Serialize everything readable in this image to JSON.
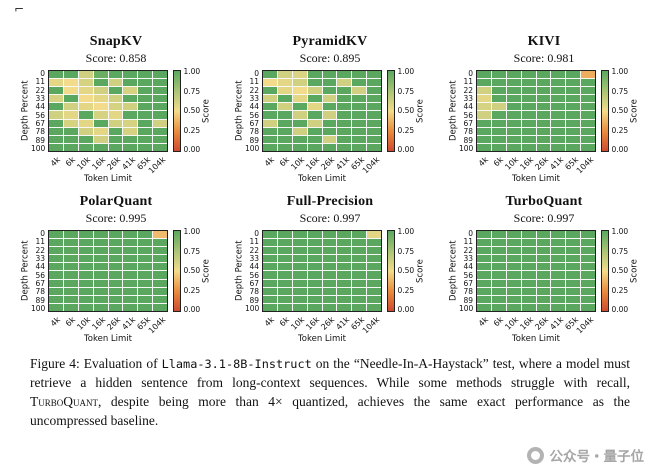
{
  "page": {
    "corner_mark": "⌐",
    "background": "#ffffff"
  },
  "axes": {
    "x_label": "Token Limit",
    "y_label": "Depth Percent",
    "x_ticks": [
      "4k",
      "6k",
      "10k",
      "16k",
      "26k",
      "41k",
      "65k",
      "104k"
    ],
    "y_ticks": [
      "0",
      "11",
      "22",
      "33",
      "44",
      "56",
      "67",
      "78",
      "89",
      "100"
    ],
    "colorbar_label": "Score",
    "colorbar_ticks": [
      "1.00",
      "0.75",
      "0.50",
      "0.25",
      "0.00"
    ]
  },
  "colormap": {
    "stops": [
      {
        "t": 0.0,
        "color": "#cf4a2f"
      },
      {
        "t": 0.25,
        "color": "#e98d3e"
      },
      {
        "t": 0.5,
        "color": "#f2dc8b"
      },
      {
        "t": 0.75,
        "color": "#a9c474"
      },
      {
        "t": 1.0,
        "color": "#5aa85f"
      }
    ]
  },
  "chart_data": [
    {
      "type": "heatmap",
      "title": "SnapKV",
      "score": 0.858,
      "score_label": "Score: 0.858",
      "x": [
        "4k",
        "6k",
        "10k",
        "16k",
        "26k",
        "41k",
        "65k",
        "104k"
      ],
      "y": [
        0,
        11,
        22,
        33,
        44,
        56,
        67,
        78,
        89,
        100
      ],
      "value_range": [
        0,
        1
      ],
      "values": [
        [
          1,
          1,
          0.62,
          0.95,
          1,
          1,
          1,
          1
        ],
        [
          0.55,
          0.5,
          0.6,
          1,
          0.62,
          1,
          1,
          1
        ],
        [
          1,
          0.5,
          0.55,
          0.62,
          1,
          0.6,
          1,
          1
        ],
        [
          0.6,
          1,
          0.5,
          0.55,
          0.62,
          1,
          1,
          1
        ],
        [
          1,
          0.62,
          0.55,
          0.5,
          0.6,
          0.62,
          1,
          1
        ],
        [
          0.62,
          0.55,
          1,
          0.6,
          0.55,
          1,
          1,
          1
        ],
        [
          1,
          0.6,
          0.55,
          1,
          0.62,
          0.6,
          1,
          0.62
        ],
        [
          1,
          1,
          0.62,
          0.55,
          1,
          0.6,
          1,
          1
        ],
        [
          1,
          1,
          1,
          0.62,
          1,
          1,
          1,
          1
        ],
        [
          1,
          1,
          1,
          1,
          1,
          1,
          1,
          1
        ]
      ]
    },
    {
      "type": "heatmap",
      "title": "PyramidKV",
      "score": 0.895,
      "score_label": "Score: 0.895",
      "x": [
        "4k",
        "6k",
        "10k",
        "16k",
        "26k",
        "41k",
        "65k",
        "104k"
      ],
      "y": [
        0,
        11,
        22,
        33,
        44,
        56,
        67,
        78,
        89,
        100
      ],
      "value_range": [
        0,
        1
      ],
      "values": [
        [
          1,
          0.62,
          0.58,
          1,
          1,
          1,
          1,
          1
        ],
        [
          0.5,
          0.55,
          0.62,
          1,
          1,
          0.62,
          1,
          1
        ],
        [
          1,
          0.55,
          0.5,
          0.62,
          1,
          1,
          0.62,
          1
        ],
        [
          0.62,
          1,
          0.55,
          1,
          0.62,
          1,
          1,
          1
        ],
        [
          1,
          0.62,
          1,
          0.55,
          1,
          1,
          1,
          1
        ],
        [
          1,
          1,
          0.62,
          1,
          0.62,
          1,
          1,
          1
        ],
        [
          0.62,
          1,
          1,
          0.62,
          1,
          1,
          1,
          1
        ],
        [
          1,
          1,
          0.62,
          1,
          1,
          1,
          1,
          1
        ],
        [
          1,
          1,
          1,
          1,
          0.62,
          1,
          1,
          1
        ],
        [
          1,
          1,
          1,
          1,
          1,
          1,
          1,
          1
        ]
      ]
    },
    {
      "type": "heatmap",
      "title": "KIVI",
      "score": 0.981,
      "score_label": "Score: 0.981",
      "x": [
        "4k",
        "6k",
        "10k",
        "16k",
        "26k",
        "41k",
        "65k",
        "104k"
      ],
      "y": [
        0,
        11,
        22,
        33,
        44,
        56,
        67,
        78,
        89,
        100
      ],
      "value_range": [
        0,
        1
      ],
      "values": [
        [
          1,
          1,
          1,
          1,
          1,
          1,
          1,
          0.35
        ],
        [
          1,
          1,
          1,
          1,
          1,
          1,
          1,
          1
        ],
        [
          0.62,
          1,
          1,
          1,
          1,
          1,
          1,
          1
        ],
        [
          0.55,
          1,
          1,
          1,
          1,
          1,
          1,
          1
        ],
        [
          0.6,
          0.62,
          1,
          1,
          1,
          1,
          1,
          1
        ],
        [
          0.62,
          1,
          1,
          1,
          1,
          1,
          1,
          1
        ],
        [
          1,
          1,
          1,
          1,
          1,
          1,
          1,
          1
        ],
        [
          1,
          1,
          1,
          1,
          1,
          1,
          1,
          1
        ],
        [
          1,
          1,
          1,
          1,
          1,
          1,
          1,
          1
        ],
        [
          1,
          1,
          1,
          1,
          1,
          1,
          1,
          1
        ]
      ]
    },
    {
      "type": "heatmap",
      "title": "PolarQuant",
      "score": 0.995,
      "score_label": "Score: 0.995",
      "x": [
        "4k",
        "6k",
        "10k",
        "16k",
        "26k",
        "41k",
        "65k",
        "104k"
      ],
      "y": [
        0,
        11,
        22,
        33,
        44,
        56,
        67,
        78,
        89,
        100
      ],
      "value_range": [
        0,
        1
      ],
      "values": [
        [
          1,
          1,
          1,
          1,
          1,
          1,
          1,
          0.4
        ],
        [
          1,
          1,
          1,
          1,
          1,
          1,
          1,
          1
        ],
        [
          1,
          1,
          1,
          1,
          1,
          1,
          1,
          1
        ],
        [
          1,
          1,
          1,
          1,
          1,
          1,
          1,
          1
        ],
        [
          1,
          1,
          1,
          1,
          1,
          1,
          1,
          1
        ],
        [
          1,
          1,
          1,
          1,
          1,
          1,
          1,
          1
        ],
        [
          1,
          1,
          1,
          1,
          1,
          1,
          1,
          1
        ],
        [
          1,
          1,
          1,
          1,
          1,
          1,
          1,
          1
        ],
        [
          1,
          1,
          1,
          1,
          1,
          1,
          1,
          1
        ],
        [
          1,
          1,
          1,
          1,
          1,
          1,
          1,
          1
        ]
      ]
    },
    {
      "type": "heatmap",
      "title": "Full-Precision",
      "score": 0.997,
      "score_label": "Score: 0.997",
      "x": [
        "4k",
        "6k",
        "10k",
        "16k",
        "26k",
        "41k",
        "65k",
        "104k"
      ],
      "y": [
        0,
        11,
        22,
        33,
        44,
        56,
        67,
        78,
        89,
        100
      ],
      "value_range": [
        0,
        1
      ],
      "values": [
        [
          1,
          1,
          1,
          1,
          1,
          1,
          1,
          0.55
        ],
        [
          1,
          1,
          1,
          1,
          1,
          1,
          1,
          1
        ],
        [
          1,
          1,
          1,
          1,
          1,
          1,
          1,
          1
        ],
        [
          1,
          1,
          1,
          1,
          1,
          1,
          1,
          1
        ],
        [
          1,
          1,
          1,
          1,
          1,
          1,
          1,
          1
        ],
        [
          1,
          1,
          1,
          1,
          1,
          1,
          1,
          1
        ],
        [
          1,
          1,
          1,
          1,
          1,
          1,
          1,
          1
        ],
        [
          1,
          1,
          1,
          1,
          1,
          1,
          1,
          1
        ],
        [
          1,
          1,
          1,
          1,
          1,
          1,
          1,
          1
        ],
        [
          1,
          1,
          1,
          1,
          1,
          1,
          1,
          1
        ]
      ]
    },
    {
      "type": "heatmap",
      "title": "TurboQuant",
      "score": 0.997,
      "score_label": "Score: 0.997",
      "x": [
        "4k",
        "6k",
        "10k",
        "16k",
        "26k",
        "41k",
        "65k",
        "104k"
      ],
      "y": [
        0,
        11,
        22,
        33,
        44,
        56,
        67,
        78,
        89,
        100
      ],
      "value_range": [
        0,
        1
      ],
      "values": [
        [
          1,
          1,
          1,
          1,
          1,
          1,
          1,
          1
        ],
        [
          1,
          1,
          1,
          1,
          1,
          1,
          1,
          1
        ],
        [
          1,
          1,
          1,
          1,
          1,
          1,
          1,
          1
        ],
        [
          1,
          1,
          1,
          1,
          1,
          1,
          1,
          1
        ],
        [
          1,
          1,
          1,
          1,
          1,
          1,
          1,
          1
        ],
        [
          1,
          1,
          1,
          1,
          1,
          1,
          1,
          1
        ],
        [
          1,
          1,
          1,
          1,
          1,
          1,
          1,
          1
        ],
        [
          1,
          1,
          1,
          1,
          1,
          1,
          1,
          1
        ],
        [
          1,
          1,
          1,
          1,
          1,
          1,
          1,
          1
        ],
        [
          1,
          1,
          1,
          1,
          1,
          1,
          1,
          1
        ]
      ]
    }
  ],
  "caption": {
    "segments": [
      {
        "style": "normal",
        "text": "Figure 4:  Evaluation of "
      },
      {
        "style": "mono",
        "text": "Llama-3.1-8B-Instruct"
      },
      {
        "style": "normal",
        "text": " on the “Needle-In-A-Haystack” test, where a model must retrieve a hidden sentence from long-context sequences. While some methods struggle with recall, "
      },
      {
        "style": "smallcaps",
        "text": "TurboQuant"
      },
      {
        "style": "normal",
        "text": ", despite being more than 4× quantized, achieves the same exact performance as the uncompressed baseline."
      }
    ]
  },
  "watermark": {
    "icon": "qbitai-logo-icon",
    "text": "公众号・量子位"
  }
}
